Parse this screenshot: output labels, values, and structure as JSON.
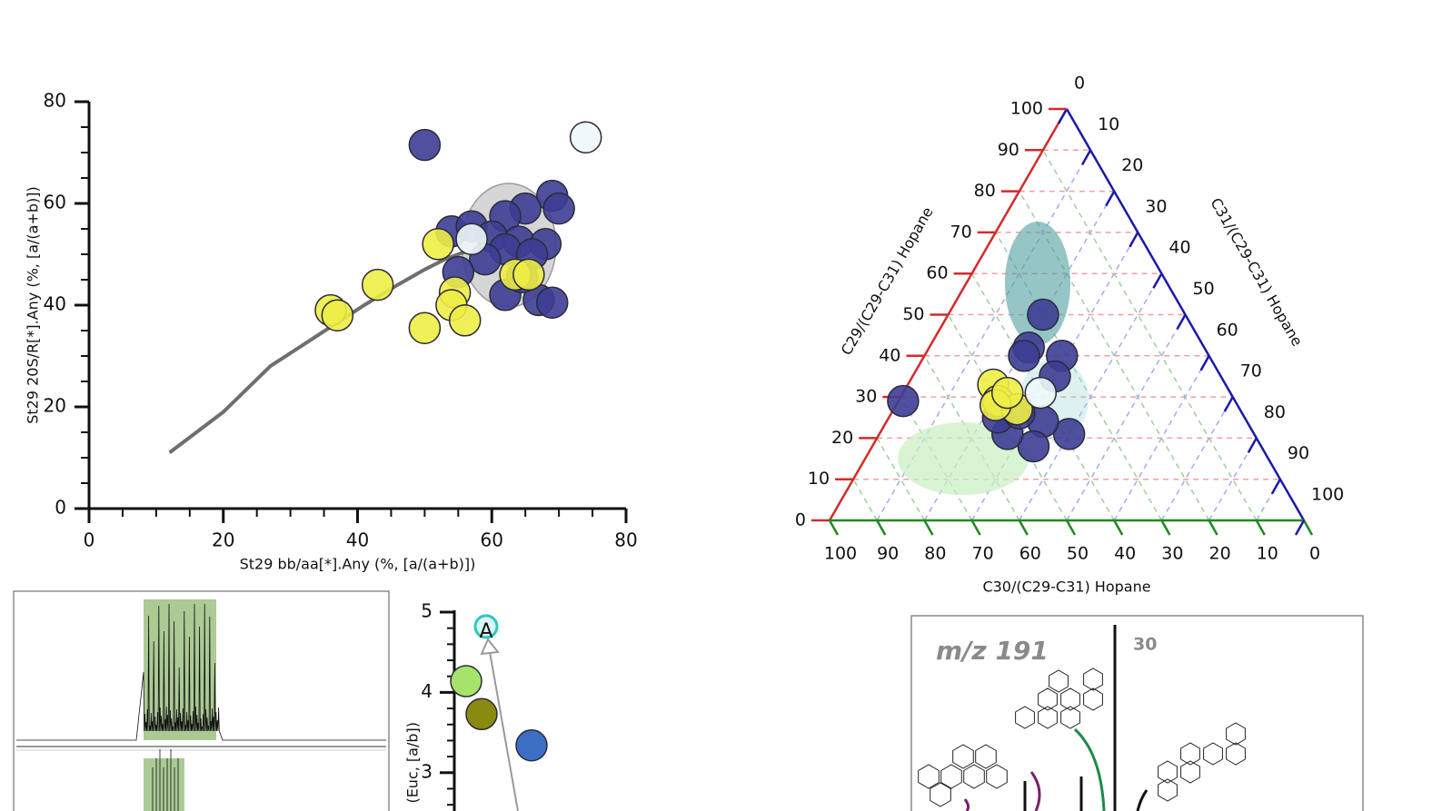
{
  "chart_data": [
    {
      "type": "scatter",
      "x_label": "St29 bb/aa[*].Any (%, [a/(a+b)])",
      "y_label": "St29 20S/R[*].Any (%, [a/(a+b)])",
      "xlim": [
        0,
        80
      ],
      "ylim": [
        0,
        80
      ],
      "xticks": [
        0,
        20,
        40,
        60,
        80
      ],
      "yticks": [
        0,
        20,
        40,
        60,
        80
      ],
      "series": [
        {
          "style": "line",
          "color": "#6e6e6e",
          "x": [
            12,
            20,
            27,
            34,
            41,
            46,
            50,
            53,
            56
          ],
          "y": [
            11,
            19,
            28,
            34,
            40,
            44,
            47,
            49,
            50.5
          ]
        },
        {
          "style": "marker",
          "color": "#3d3d94",
          "x": [
            50,
            69,
            70,
            65,
            62,
            54,
            57,
            60,
            64,
            68,
            62,
            66,
            59,
            55,
            62,
            67,
            69,
            64.5
          ],
          "y": [
            71.5,
            61.5,
            59,
            59,
            57.5,
            54.5,
            55.5,
            53.5,
            52.5,
            52,
            51,
            50,
            49,
            46.5,
            42,
            41,
            40.5,
            45.5
          ]
        },
        {
          "style": "marker",
          "color": "#eded45",
          "x": [
            52,
            43,
            36,
            37,
            54.5,
            54,
            50,
            56,
            63.5,
            65.5
          ],
          "y": [
            52,
            44,
            39,
            38,
            42.5,
            40,
            35.5,
            37,
            46,
            46
          ]
        },
        {
          "style": "marker",
          "color": "#eef8f8",
          "x": [
            74,
            57
          ],
          "y": [
            73,
            53
          ]
        }
      ]
    },
    {
      "type": "ternary",
      "left_label": "C29/(C29-C31) Hopane",
      "right_label": "C31/(C29-C31) Hopane",
      "bottom_label": "C30/(C29-C31) Hopane",
      "ticks": [
        0,
        10,
        20,
        30,
        40,
        50,
        60,
        70,
        80,
        90,
        100
      ],
      "left_color": "#d42a2a",
      "right_color": "#1a1aa8",
      "bottom_color": "#1f8a1f",
      "series": [
        {
          "color": "#3d3d94",
          "c29": [
            29,
            50,
            42,
            40,
            40,
            35,
            21,
            24,
            18,
            21,
            25,
            26
          ],
          "c30": [
            70,
            30,
            37,
            39,
            31,
            35,
            39,
            43,
            48,
            52,
            52,
            47
          ],
          "c31": [
            1,
            20,
            21,
            21,
            29,
            30,
            40,
            33,
            34,
            27,
            23,
            27
          ]
        },
        {
          "color": "#eded45",
          "c29": [
            33,
            29,
            27,
            28,
            31
          ],
          "c30": [
            49,
            50,
            47,
            51,
            47
          ],
          "c31": [
            18,
            21,
            26,
            21,
            22
          ]
        },
        {
          "color": "#eef8f8",
          "c29": [
            31
          ],
          "c30": [
            40
          ],
          "c31": [
            29
          ]
        }
      ]
    },
    {
      "type": "dot",
      "y_label": "(Euc, [a/b])",
      "ylim": [
        2.5,
        5
      ],
      "yticks": [
        3,
        4,
        5
      ],
      "categories": [
        null,
        null,
        null,
        null
      ],
      "values": [
        4.14,
        3.73,
        3.34,
        4.82
      ],
      "colors": [
        "#a6e36a",
        "#8a8a10",
        "#3a6fc4",
        "#d8f6f4"
      ],
      "annotation": "A"
    }
  ],
  "spectrum": {
    "mz_label": "m/z 191",
    "peak_label": "30"
  }
}
